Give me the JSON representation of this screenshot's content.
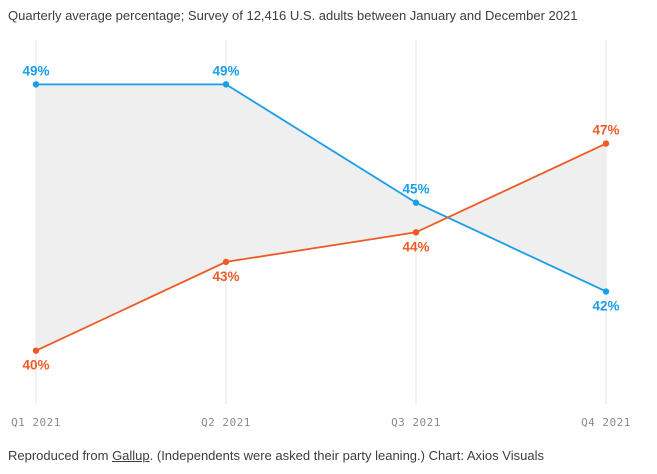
{
  "chart_data": {
    "type": "line",
    "subtitle": "Quarterly average percentage; Survey of 12,416 U.S. adults between January and December 2021",
    "categories": [
      "Q1 2021",
      "Q2 2021",
      "Q3 2021",
      "Q4 2021"
    ],
    "series": [
      {
        "values": [
          49,
          49,
          45,
          42
        ],
        "labels": [
          "49%",
          "49%",
          "45%",
          "42%"
        ],
        "color": "#1a9ee6"
      },
      {
        "values": [
          40,
          43,
          44,
          47
        ],
        "labels": [
          "40%",
          "43%",
          "44%",
          "47%"
        ],
        "color": "#ee5a24"
      }
    ],
    "ylim": [
      38.4,
      50.5
    ],
    "fill_between_color": "#efefef",
    "gridline_color": "#e6e6e6",
    "grid": "vertical"
  },
  "footer": {
    "prefix": "Reproduced from ",
    "link": "Gallup",
    "suffix": ". (Independents were asked their party leaning.) Chart: Axios Visuals"
  }
}
